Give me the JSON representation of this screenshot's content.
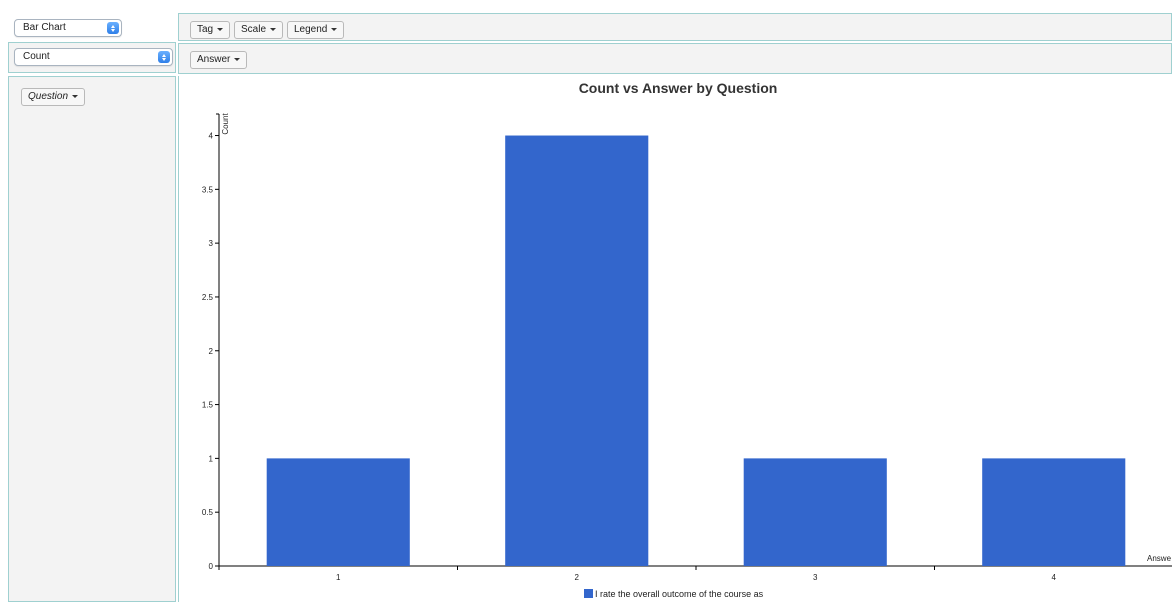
{
  "controls": {
    "chart_type": "Bar Chart",
    "measure": "Count"
  },
  "toolbar": {
    "tag_label": "Tag",
    "scale_label": "Scale",
    "legend_label": "Legend"
  },
  "axis_control": {
    "x_field_label": "Answer"
  },
  "group_panel": {
    "group_field_label": "Question"
  },
  "colors": {
    "bar": "#3366cc",
    "panel_border": "#9fd0d0"
  },
  "chart_data": {
    "type": "bar",
    "title": "Count vs Answer by Question",
    "xlabel": "Answe",
    "ylabel": "Count",
    "categories": [
      "1",
      "2",
      "3",
      "4"
    ],
    "series": [
      {
        "name": "I rate the overall outcome of the course as",
        "values": [
          1,
          4,
          1,
          1
        ]
      }
    ],
    "ylim": [
      0,
      4.2
    ],
    "yticks": [
      "0",
      "0.5",
      "1",
      "1.5",
      "2",
      "2.5",
      "3",
      "3.5",
      "4"
    ],
    "legend_position": "bottom"
  }
}
